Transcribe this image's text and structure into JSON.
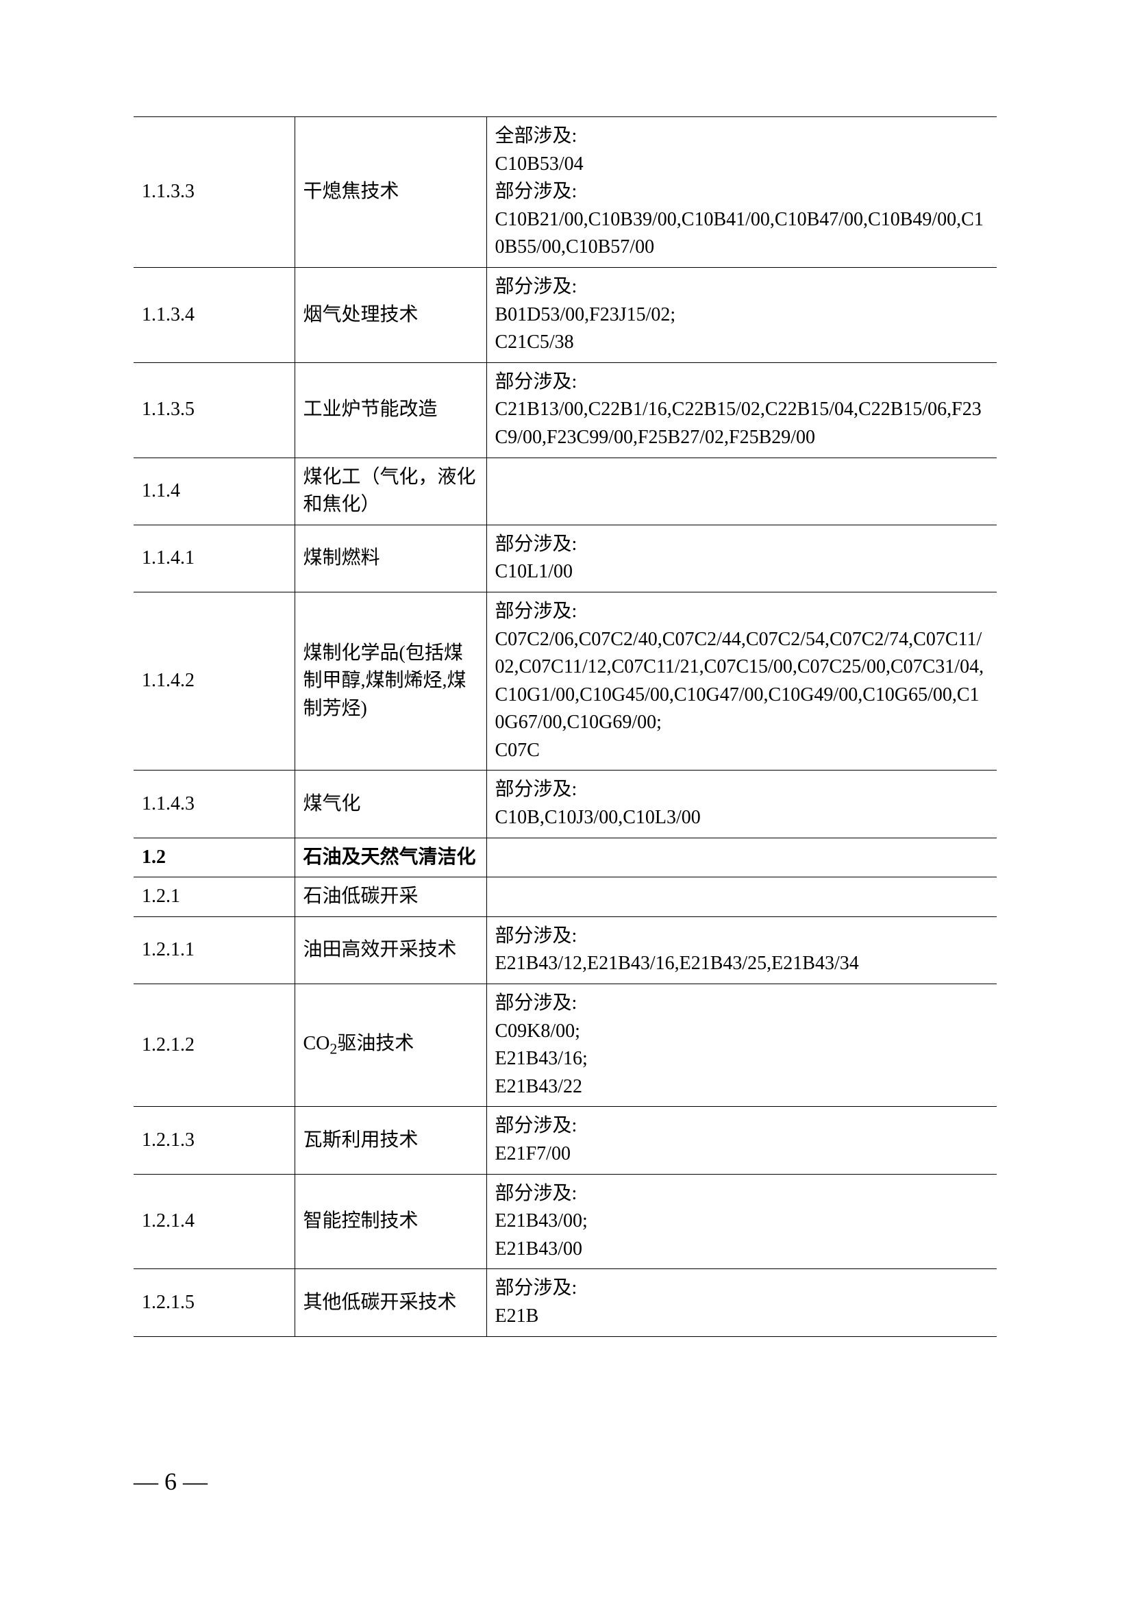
{
  "rows": [
    {
      "code": "1.1.3.3",
      "name": "干熄焦技术",
      "desc": "全部涉及:\nC10B53/04\n部分涉及:\nC10B21/00,C10B39/00,C10B41/00,C10B47/00,C10B49/00,C10B55/00,C10B57/00",
      "bold": false
    },
    {
      "code": "1.1.3.4",
      "name": "烟气处理技术",
      "desc": "部分涉及:\nB01D53/00,F23J15/02;\nC21C5/38",
      "bold": false
    },
    {
      "code": "1.1.3.5",
      "name": "工业炉节能改造",
      "desc": "部分涉及:\nC21B13/00,C22B1/16,C22B15/02,C22B15/04,C22B15/06,F23C9/00,F23C99/00,F25B27/02,F25B29/00",
      "bold": false
    },
    {
      "code": "1.1.4",
      "name": "煤化工（气化，液化和焦化）",
      "desc": "",
      "bold": false
    },
    {
      "code": "1.1.4.1",
      "name": "煤制燃料",
      "desc": "部分涉及:\nC10L1/00",
      "bold": false
    },
    {
      "code": "1.1.4.2",
      "name": "煤制化学品(包括煤制甲醇,煤制烯烃,煤制芳烃)",
      "desc": "部分涉及:\nC07C2/06,C07C2/40,C07C2/44,C07C2/54,C07C2/74,C07C11/02,C07C11/12,C07C11/21,C07C15/00,C07C25/00,C07C31/04,C10G1/00,C10G45/00,C10G47/00,C10G49/00,C10G65/00,C10G67/00,C10G69/00;\nC07C",
      "bold": false
    },
    {
      "code": "1.1.4.3",
      "name": "煤气化",
      "desc": "部分涉及:\nC10B,C10J3/00,C10L3/00",
      "bold": false
    },
    {
      "code": "1.2",
      "name": "石油及天然气清洁化",
      "desc": "",
      "bold": true
    },
    {
      "code": "1.2.1",
      "name": "石油低碳开采",
      "desc": "",
      "bold": false
    },
    {
      "code": "1.2.1.1",
      "name": "油田高效开采技术",
      "desc": "部分涉及:\nE21B43/12,E21B43/16,E21B43/25,E21B43/34",
      "bold": false
    },
    {
      "code": "1.2.1.2",
      "name": "CO₂驱油技术",
      "desc": "部分涉及:\nC09K8/00;\nE21B43/16;\nE21B43/22",
      "bold": false,
      "hasSubscript": true
    },
    {
      "code": "1.2.1.3",
      "name": "瓦斯利用技术",
      "desc": "部分涉及:\nE21F7/00",
      "bold": false
    },
    {
      "code": "1.2.1.4",
      "name": "智能控制技术",
      "desc": "部分涉及:\nE21B43/00;\nE21B43/00",
      "bold": false
    },
    {
      "code": "1.2.1.5",
      "name": "其他低碳开采技术",
      "desc": "部分涉及:\nE21B",
      "bold": false
    }
  ],
  "pageNumber": "— 6 —"
}
